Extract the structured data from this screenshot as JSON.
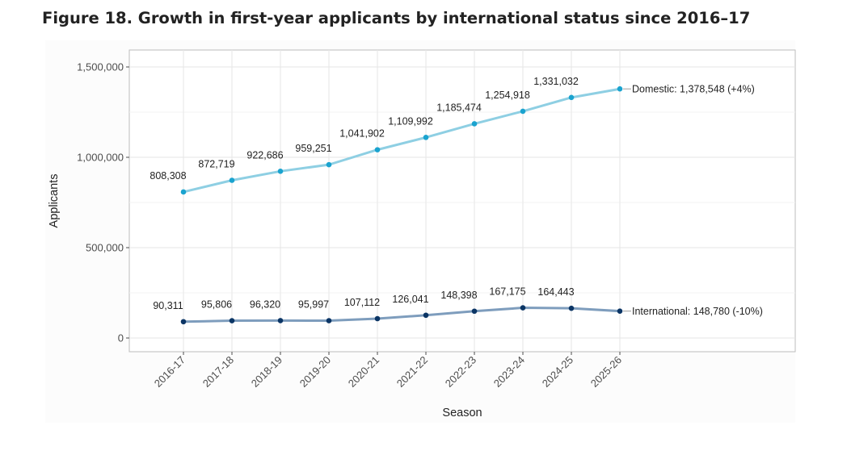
{
  "figure": {
    "title": "Figure 18. Growth in first-year applicants by international status since 2016–17"
  },
  "chart_data": {
    "type": "line",
    "xlabel": "Season",
    "ylabel": "Applicants",
    "categories": [
      "2016-17",
      "2017-18",
      "2018-19",
      "2019-20",
      "2020-21",
      "2021-22",
      "2022-23",
      "2023-24",
      "2024-25",
      "2025-26"
    ],
    "ylim": [
      0,
      1500000
    ],
    "yticks": [
      0,
      500000,
      1000000,
      1500000
    ],
    "ytick_labels": [
      "0",
      "500,000",
      "1,000,000",
      "1,500,000"
    ],
    "grid": true,
    "series": [
      {
        "key": "domestic",
        "values": [
          808308,
          872719,
          922686,
          959251,
          1041902,
          1109992,
          1185474,
          1254918,
          1331032,
          1378548
        ],
        "value_labels": [
          "808,308",
          "872,719",
          "922,686",
          "959,251",
          "1,041,902",
          "1,109,992",
          "1,185,474",
          "1,254,918",
          "1,331,032",
          ""
        ],
        "end_label": "Domestic: 1,378,548 (+4%)",
        "line_color": "#8ecfe3",
        "point_color": "#1aa3cf"
      },
      {
        "key": "international",
        "values": [
          90311,
          95806,
          96320,
          95997,
          107112,
          126041,
          148398,
          167175,
          164443,
          148780
        ],
        "value_labels": [
          "90,311",
          "95,806",
          "96,320",
          "95,997",
          "107,112",
          "126,041",
          "148,398",
          "167,175",
          "164,443",
          ""
        ],
        "end_label": "International: 148,780 (-10%)",
        "line_color": "#7e9dbd",
        "point_color": "#0b3565"
      }
    ]
  }
}
